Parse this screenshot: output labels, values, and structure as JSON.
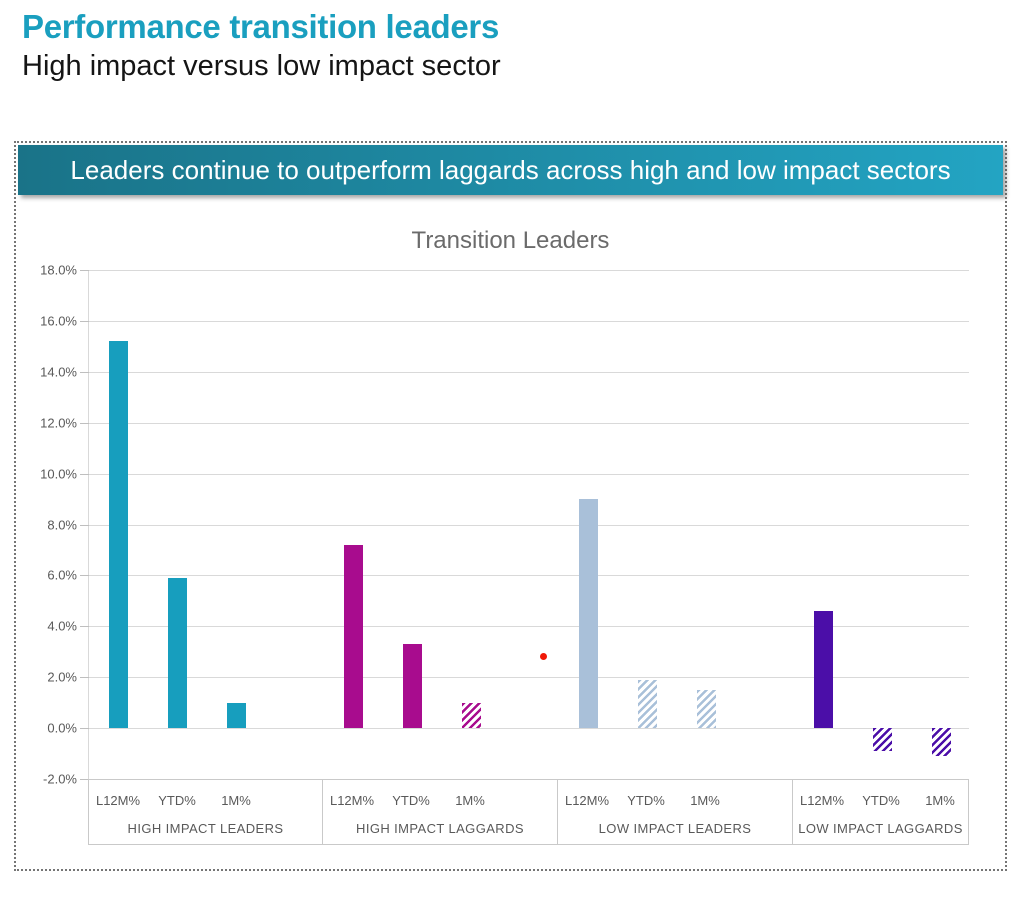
{
  "page": {
    "title": "Performance transition leaders",
    "subtitle": "High impact versus low impact sector"
  },
  "banner": {
    "text": "Leaders continue to outperform laggards across high and low impact sectors"
  },
  "colors": {
    "accent_teal": "#1A9FBF",
    "banner_gradient_left": "#1A7388",
    "banner_gradient_right": "#23A4C3",
    "gridline": "#D9D9D9",
    "axis_text": "#595959",
    "axis_box_border": "#C9C9C9"
  },
  "chart_data": {
    "type": "bar",
    "title": "Transition Leaders",
    "value_unit": "percent",
    "ylim": [
      -2,
      18
    ],
    "ytick_labels": [
      "18.0%",
      "16.0%",
      "14.0%",
      "12.0%",
      "10.0%",
      "8.0%",
      "6.0%",
      "4.0%",
      "2.0%",
      "0.0%",
      "-2.0%"
    ],
    "grid": true,
    "legend": "none",
    "metrics": [
      "L12M%",
      "YTD%",
      "1M%"
    ],
    "groups": [
      {
        "label": "HIGH IMPACT LEADERS",
        "color": "#179EBE",
        "bars": [
          {
            "metric": "L12M%",
            "value": 15.2,
            "fill": "solid"
          },
          {
            "metric": "YTD%",
            "value": 5.9,
            "fill": "solid"
          },
          {
            "metric": "1M%",
            "value": 1.0,
            "fill": "solid"
          }
        ]
      },
      {
        "label": "HIGH IMPACT LAGGARDS",
        "color": "#A80C8E",
        "bars": [
          {
            "metric": "L12M%",
            "value": 7.2,
            "fill": "solid"
          },
          {
            "metric": "YTD%",
            "value": 3.3,
            "fill": "solid"
          },
          {
            "metric": "1M%",
            "value": 1.0,
            "fill": "hatched"
          }
        ]
      },
      {
        "label": "LOW IMPACT LEADERS",
        "color": "#A9C0D9",
        "bars": [
          {
            "metric": "L12M%",
            "value": 9.0,
            "fill": "solid"
          },
          {
            "metric": "YTD%",
            "value": 1.9,
            "fill": "hatched"
          },
          {
            "metric": "1M%",
            "value": 1.5,
            "fill": "hatched"
          }
        ]
      },
      {
        "label": "LOW IMPACT LAGGARDS",
        "color": "#4B0EA8",
        "bars": [
          {
            "metric": "L12M%",
            "value": 4.6,
            "fill": "solid"
          },
          {
            "metric": "YTD%",
            "value": -0.9,
            "fill": "hatched"
          },
          {
            "metric": "1M%",
            "value": -1.1,
            "fill": "hatched"
          }
        ]
      }
    ],
    "annotation_dot": {
      "color": "#F01807",
      "value": 2.8,
      "x_frac": 0.516,
      "description": "small red dot near right edge of HIGH IMPACT LAGGARDS group at about 2.8%"
    }
  }
}
